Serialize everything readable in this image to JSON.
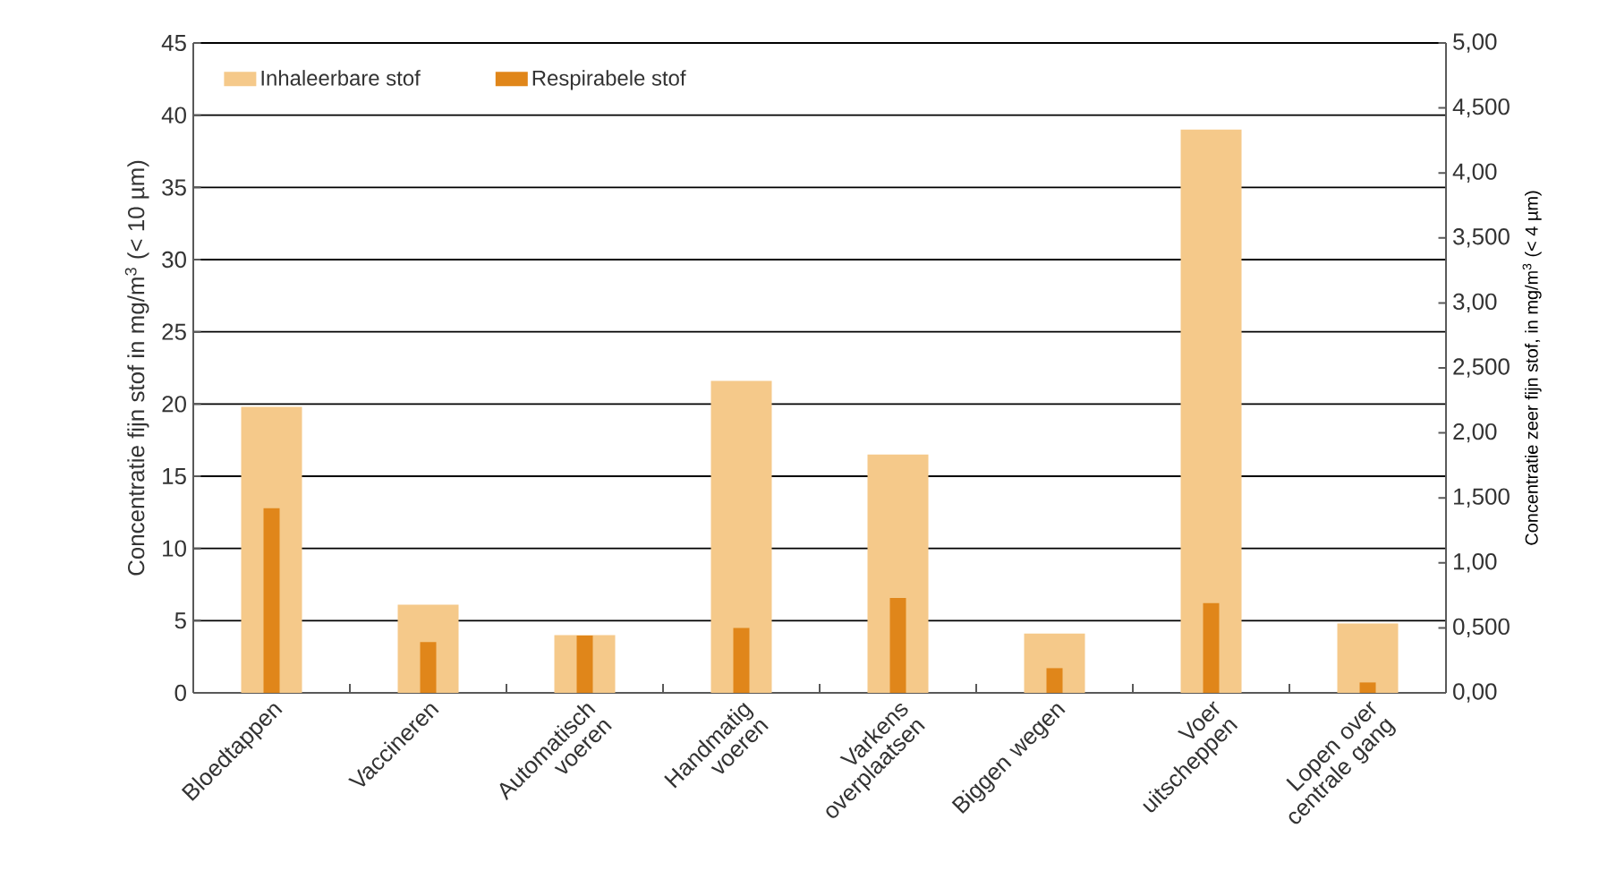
{
  "chart_data": {
    "type": "bar",
    "categories": [
      "Bloedtappen",
      "Vaccineren",
      "Automatisch voeren",
      "Handmatig voeren",
      "Varkens overplaatsen",
      "Biggen wegen",
      "Voer uitscheppen",
      "Lopen over centrale gang"
    ],
    "series": [
      {
        "name": "Inhaleerbare stof",
        "color": "#f5c98a",
        "values": [
          19.8,
          6.1,
          4.0,
          21.6,
          16.5,
          4.1,
          39.0,
          4.8
        ]
      },
      {
        "name": "Respirabele stof",
        "color": "#e0861a",
        "axis": "y2",
        "values": [
          1.42,
          0.39,
          0.44,
          0.5,
          0.73,
          0.19,
          0.69,
          0.08
        ]
      }
    ],
    "ylabel": "Concentratie fijn stof  in mg/m$^{3}$ (< 10 µm)",
    "y2label": "Concentratie zeer fijn stof, in mg/m$^{3}$ (< 4 µm)",
    "ylim": [
      0,
      45
    ],
    "yticks": [
      0,
      5,
      10,
      15,
      20,
      25,
      30,
      35,
      40,
      45
    ],
    "y2lim": [
      0,
      5
    ],
    "y2ticks": [
      {
        "value": 0,
        "label": "0,00"
      },
      {
        "value": 0.5,
        "label": "0,500"
      },
      {
        "value": 1,
        "label": "1,00"
      },
      {
        "value": 1.5,
        "label": "1,500"
      },
      {
        "value": 2,
        "label": "2,00"
      },
      {
        "value": 2.5,
        "label": "2,500"
      },
      {
        "value": 3,
        "label": "3,00"
      },
      {
        "value": 3.5,
        "label": "3,500"
      },
      {
        "value": 4,
        "label": "4,00"
      },
      {
        "value": 4.5,
        "label": "4,500"
      },
      {
        "value": 5,
        "label": "5,00"
      }
    ],
    "grid": "y",
    "legend": "top left"
  }
}
